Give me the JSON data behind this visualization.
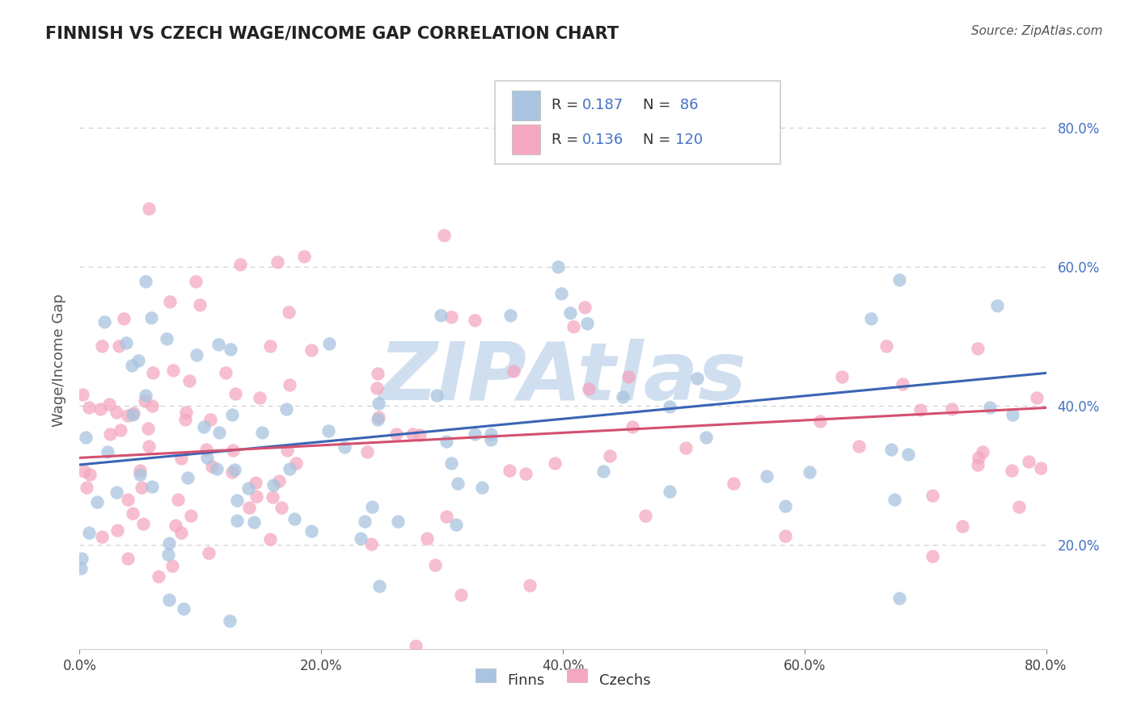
{
  "title": "FINNISH VS CZECH WAGE/INCOME GAP CORRELATION CHART",
  "source": "Source: ZipAtlas.com",
  "ylabel": "Wage/Income Gap",
  "yaxis_ticks": [
    0.2,
    0.4,
    0.6,
    0.8
  ],
  "yaxis_labels": [
    "20.0%",
    "40.0%",
    "60.0%",
    "80.0%"
  ],
  "xmin": 0.0,
  "xmax": 0.8,
  "ymin": 0.05,
  "ymax": 0.88,
  "finns_color": "#a8c4e0",
  "czechs_color": "#f4a8c0",
  "finns_line_color": "#3a65b5",
  "czechs_line_color": "#d45070",
  "finns_R": 0.187,
  "finns_N": 86,
  "czechs_R": 0.136,
  "czechs_N": 120,
  "background_color": "#ffffff",
  "grid_color": "#aaaaaa",
  "watermark_color": "#d0dff0",
  "finns_intercept": 0.315,
  "finns_slope": 0.165,
  "czechs_intercept": 0.325,
  "czechs_slope": 0.09
}
